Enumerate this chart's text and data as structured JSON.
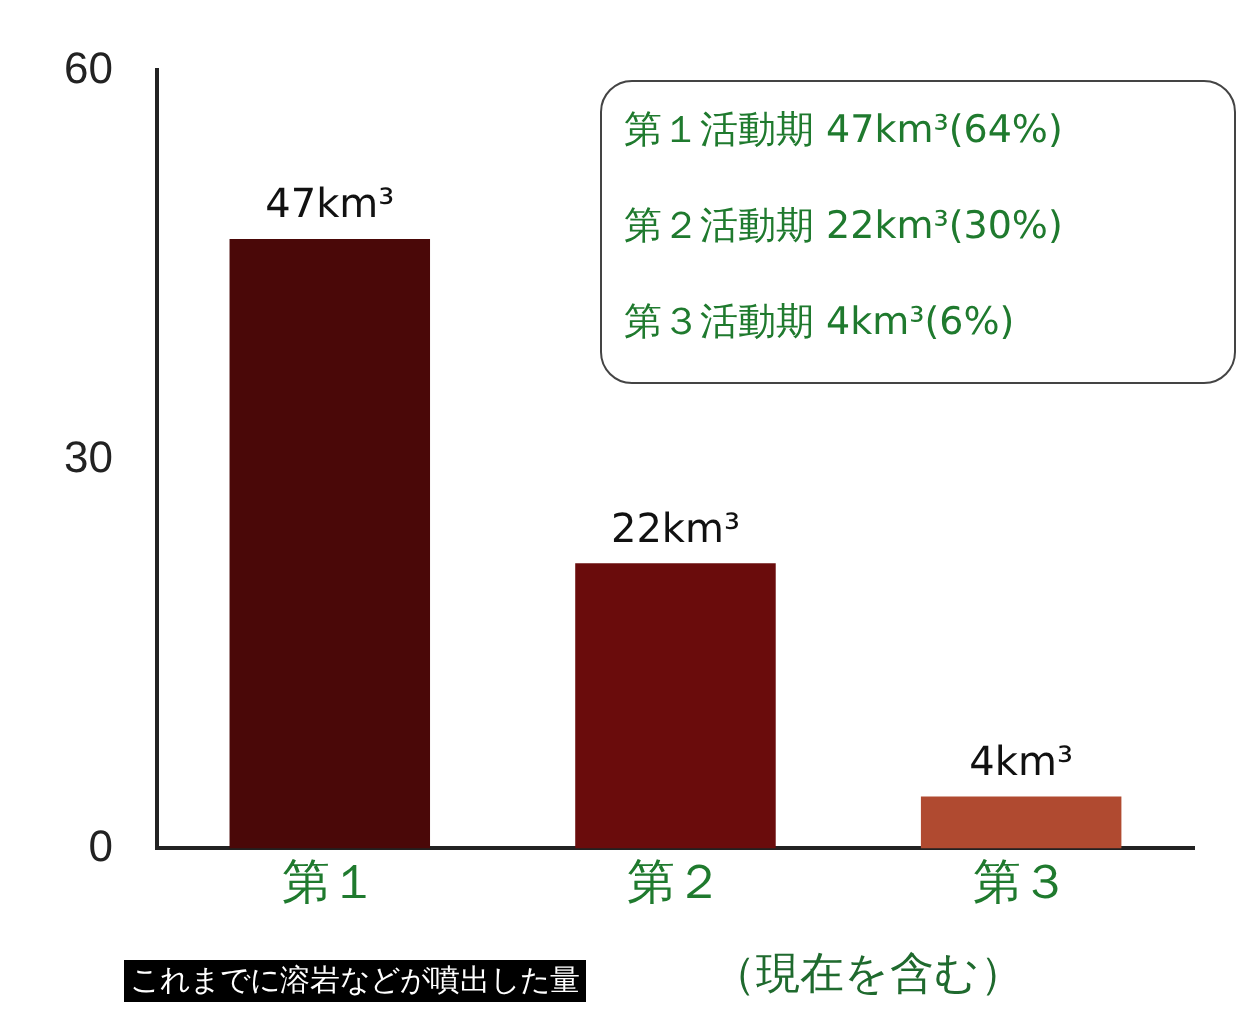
{
  "chart_data": {
    "type": "bar",
    "categories": [
      "第１",
      "第２",
      "第３"
    ],
    "values": [
      47,
      22,
      4
    ],
    "colors": [
      "#4a0808",
      "#6a0c0c",
      "#b04a30"
    ],
    "value_labels": [
      "47km³",
      "22km³",
      "4km³"
    ],
    "ylim": [
      0,
      60
    ],
    "yticks": [
      0,
      30,
      60
    ],
    "grid": false,
    "legend": false,
    "annotations": [
      "第１活動期 47km³(64%)",
      "第２活動期 22km³(30%)",
      "第３活動期 4km³(6%)",
      "これまでに溶岩などが噴出した量",
      "（現在を含む）"
    ]
  }
}
